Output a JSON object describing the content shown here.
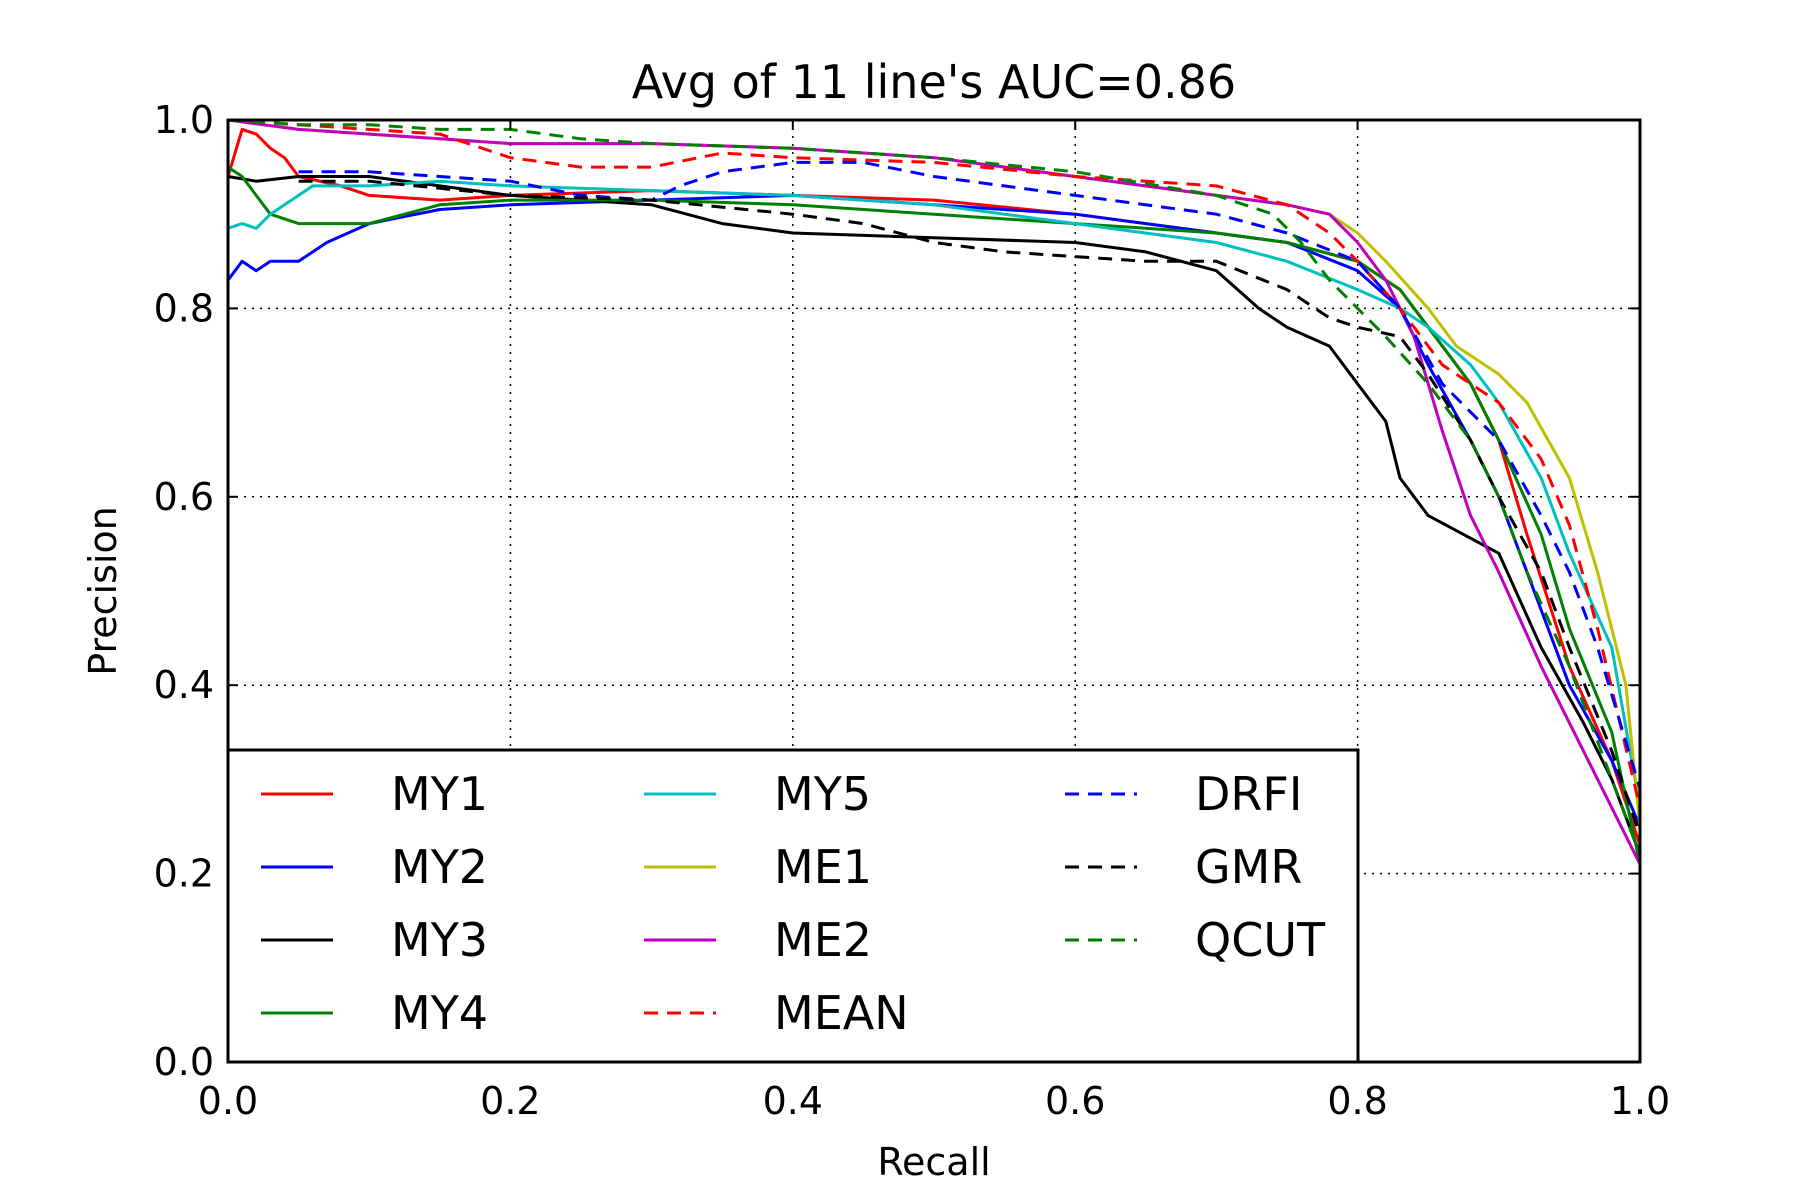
{
  "chart_data": {
    "type": "line",
    "title": "Avg of 11 line's AUC=0.86",
    "xlabel": "Recall",
    "ylabel": "Precision",
    "xlim": [
      0.0,
      1.0
    ],
    "ylim": [
      0.0,
      1.0
    ],
    "xticks": [
      "0.0",
      "0.2",
      "0.4",
      "0.6",
      "0.8",
      "1.0"
    ],
    "yticks": [
      "0.0",
      "0.2",
      "0.4",
      "0.6",
      "0.8",
      "1.0"
    ],
    "grid": true,
    "legend_position": "lower-left",
    "series": [
      {
        "name": "MY1",
        "color": "#ff0000",
        "dash": false,
        "x": [
          0.0,
          0.01,
          0.02,
          0.03,
          0.04,
          0.05,
          0.08,
          0.1,
          0.15,
          0.2,
          0.3,
          0.4,
          0.5,
          0.6,
          0.7,
          0.75,
          0.8,
          0.83,
          0.85,
          0.88,
          0.9,
          0.92,
          0.95,
          0.98,
          1.0
        ],
        "y": [
          0.94,
          0.99,
          0.985,
          0.97,
          0.96,
          0.94,
          0.93,
          0.92,
          0.915,
          0.92,
          0.925,
          0.92,
          0.915,
          0.9,
          0.88,
          0.87,
          0.85,
          0.82,
          0.78,
          0.72,
          0.66,
          0.56,
          0.42,
          0.32,
          0.23
        ]
      },
      {
        "name": "MY2",
        "color": "#0000ff",
        "dash": false,
        "x": [
          0.0,
          0.01,
          0.02,
          0.03,
          0.05,
          0.07,
          0.1,
          0.15,
          0.2,
          0.3,
          0.4,
          0.5,
          0.6,
          0.7,
          0.75,
          0.8,
          0.83,
          0.85,
          0.88,
          0.9,
          0.92,
          0.95,
          0.98,
          1.0
        ],
        "y": [
          0.83,
          0.85,
          0.84,
          0.85,
          0.85,
          0.87,
          0.89,
          0.905,
          0.91,
          0.915,
          0.92,
          0.91,
          0.9,
          0.88,
          0.87,
          0.84,
          0.8,
          0.74,
          0.66,
          0.6,
          0.52,
          0.4,
          0.32,
          0.25
        ]
      },
      {
        "name": "MY3",
        "color": "#000000",
        "dash": false,
        "x": [
          0.0,
          0.02,
          0.05,
          0.1,
          0.15,
          0.2,
          0.3,
          0.35,
          0.4,
          0.5,
          0.6,
          0.65,
          0.7,
          0.73,
          0.75,
          0.78,
          0.8,
          0.82,
          0.83,
          0.85,
          0.9,
          0.93,
          0.96,
          0.98,
          1.0
        ],
        "y": [
          0.94,
          0.935,
          0.94,
          0.94,
          0.93,
          0.92,
          0.91,
          0.89,
          0.88,
          0.875,
          0.87,
          0.86,
          0.84,
          0.8,
          0.78,
          0.76,
          0.72,
          0.68,
          0.62,
          0.58,
          0.54,
          0.44,
          0.36,
          0.3,
          0.22
        ]
      },
      {
        "name": "MY4",
        "color": "#008000",
        "dash": false,
        "x": [
          0.0,
          0.01,
          0.02,
          0.03,
          0.05,
          0.08,
          0.1,
          0.15,
          0.2,
          0.3,
          0.4,
          0.5,
          0.6,
          0.7,
          0.75,
          0.8,
          0.83,
          0.85,
          0.88,
          0.9,
          0.93,
          0.95,
          0.98,
          1.0
        ],
        "y": [
          0.95,
          0.94,
          0.92,
          0.9,
          0.89,
          0.89,
          0.89,
          0.91,
          0.915,
          0.915,
          0.91,
          0.9,
          0.89,
          0.88,
          0.87,
          0.85,
          0.82,
          0.78,
          0.72,
          0.66,
          0.56,
          0.46,
          0.35,
          0.21
        ]
      },
      {
        "name": "MY5",
        "color": "#00bfbf",
        "dash": false,
        "x": [
          0.0,
          0.01,
          0.02,
          0.03,
          0.04,
          0.05,
          0.06,
          0.08,
          0.1,
          0.15,
          0.2,
          0.3,
          0.4,
          0.5,
          0.6,
          0.7,
          0.75,
          0.8,
          0.83,
          0.85,
          0.88,
          0.9,
          0.93,
          0.95,
          0.98,
          1.0
        ],
        "y": [
          0.885,
          0.89,
          0.885,
          0.9,
          0.91,
          0.92,
          0.93,
          0.93,
          0.93,
          0.935,
          0.93,
          0.925,
          0.92,
          0.91,
          0.89,
          0.87,
          0.85,
          0.82,
          0.8,
          0.78,
          0.74,
          0.7,
          0.62,
          0.54,
          0.44,
          0.27
        ]
      },
      {
        "name": "ME1",
        "color": "#bfbf00",
        "dash": false,
        "x": [
          0.0,
          0.05,
          0.1,
          0.2,
          0.3,
          0.4,
          0.5,
          0.6,
          0.7,
          0.75,
          0.78,
          0.8,
          0.82,
          0.85,
          0.87,
          0.9,
          0.92,
          0.95,
          0.97,
          0.99,
          1.0
        ],
        "y": [
          1.0,
          0.99,
          0.985,
          0.975,
          0.975,
          0.97,
          0.96,
          0.94,
          0.92,
          0.91,
          0.9,
          0.88,
          0.85,
          0.8,
          0.76,
          0.73,
          0.7,
          0.62,
          0.52,
          0.4,
          0.25
        ]
      },
      {
        "name": "ME2",
        "color": "#bf00bf",
        "dash": false,
        "x": [
          0.0,
          0.05,
          0.1,
          0.15,
          0.2,
          0.3,
          0.4,
          0.5,
          0.6,
          0.7,
          0.75,
          0.78,
          0.8,
          0.82,
          0.84,
          0.86,
          0.88,
          0.9,
          0.93,
          0.96,
          1.0
        ],
        "y": [
          1.0,
          0.99,
          0.985,
          0.98,
          0.975,
          0.975,
          0.97,
          0.96,
          0.94,
          0.92,
          0.91,
          0.9,
          0.87,
          0.83,
          0.77,
          0.67,
          0.58,
          0.52,
          0.42,
          0.33,
          0.21
        ]
      },
      {
        "name": "MEAN",
        "color": "#ff0000",
        "dash": true,
        "x": [
          0.0,
          0.05,
          0.1,
          0.15,
          0.2,
          0.25,
          0.3,
          0.35,
          0.4,
          0.5,
          0.6,
          0.7,
          0.75,
          0.78,
          0.8,
          0.83,
          0.86,
          0.9,
          0.93,
          0.95,
          0.97,
          1.0
        ],
        "y": [
          1.0,
          0.995,
          0.99,
          0.985,
          0.96,
          0.95,
          0.95,
          0.965,
          0.96,
          0.955,
          0.94,
          0.93,
          0.91,
          0.88,
          0.85,
          0.8,
          0.74,
          0.7,
          0.64,
          0.57,
          0.46,
          0.27
        ]
      },
      {
        "name": "DRFI",
        "color": "#0000ff",
        "dash": true,
        "x": [
          0.05,
          0.1,
          0.15,
          0.2,
          0.25,
          0.3,
          0.32,
          0.35,
          0.4,
          0.45,
          0.5,
          0.6,
          0.7,
          0.75,
          0.8,
          0.83,
          0.86,
          0.9,
          0.93,
          0.95,
          0.97,
          1.0
        ],
        "y": [
          0.945,
          0.945,
          0.94,
          0.935,
          0.92,
          0.915,
          0.93,
          0.945,
          0.955,
          0.955,
          0.94,
          0.92,
          0.9,
          0.88,
          0.85,
          0.8,
          0.72,
          0.66,
          0.58,
          0.52,
          0.44,
          0.29
        ]
      },
      {
        "name": "GMR",
        "color": "#000000",
        "dash": true,
        "x": [
          0.05,
          0.1,
          0.2,
          0.3,
          0.4,
          0.45,
          0.5,
          0.55,
          0.6,
          0.65,
          0.7,
          0.75,
          0.78,
          0.8,
          0.83,
          0.85,
          0.88,
          0.9,
          0.93,
          0.95,
          0.98,
          1.0
        ],
        "y": [
          0.935,
          0.935,
          0.92,
          0.915,
          0.9,
          0.89,
          0.87,
          0.86,
          0.855,
          0.85,
          0.85,
          0.82,
          0.79,
          0.78,
          0.77,
          0.73,
          0.66,
          0.6,
          0.52,
          0.44,
          0.33,
          0.24
        ]
      },
      {
        "name": "QCUT",
        "color": "#008000",
        "dash": true,
        "x": [
          0.0,
          0.05,
          0.1,
          0.15,
          0.2,
          0.25,
          0.3,
          0.4,
          0.5,
          0.6,
          0.7,
          0.74,
          0.76,
          0.78,
          0.8,
          0.82,
          0.85,
          0.88,
          0.9,
          0.92,
          0.95,
          0.98,
          1.0
        ],
        "y": [
          1.0,
          0.995,
          0.995,
          0.99,
          0.99,
          0.98,
          0.975,
          0.97,
          0.96,
          0.945,
          0.92,
          0.9,
          0.87,
          0.83,
          0.8,
          0.77,
          0.72,
          0.66,
          0.6,
          0.52,
          0.42,
          0.3,
          0.22
        ]
      }
    ]
  }
}
